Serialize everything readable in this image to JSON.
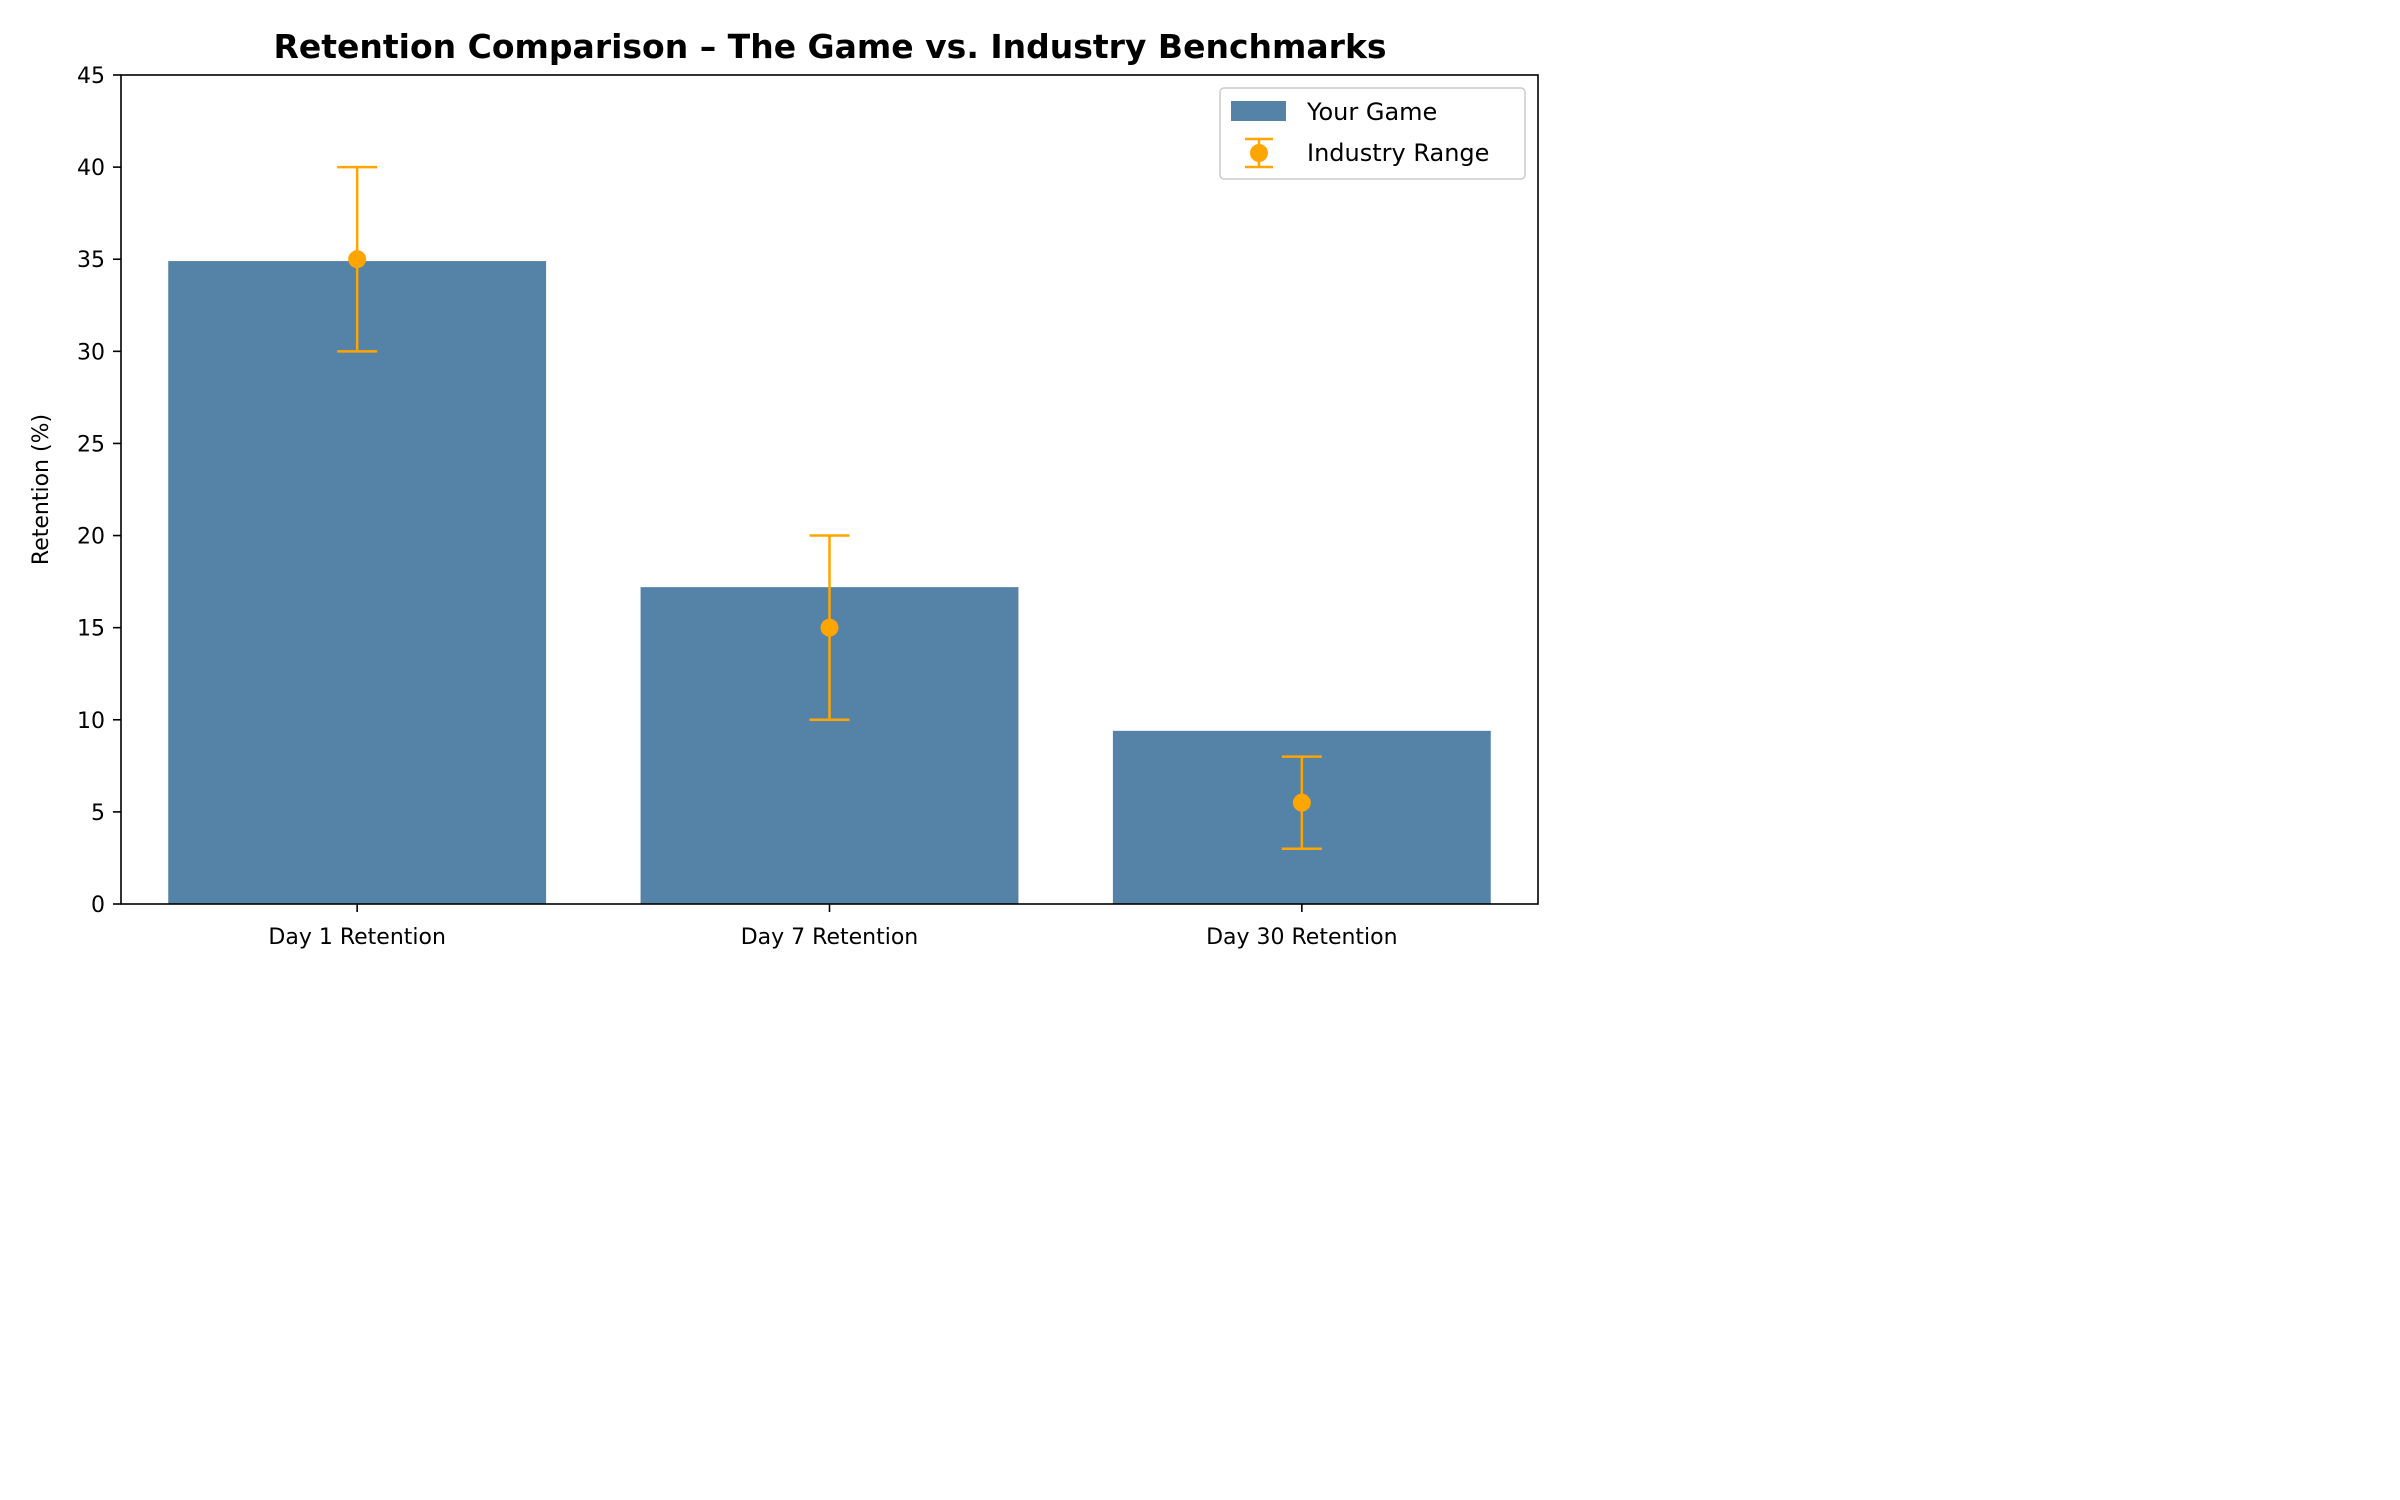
{
  "chart_data": {
    "type": "bar",
    "title": "Retention Comparison – The Game vs. Industry Benchmarks",
    "xlabel": "",
    "ylabel": "Retention (%)",
    "ylim": [
      0,
      45
    ],
    "yticks": [
      0,
      5,
      10,
      15,
      20,
      25,
      30,
      35,
      40,
      45
    ],
    "grid": false,
    "legend_position": "top-right",
    "categories": [
      "Day 1 Retention",
      "Day 7 Retention",
      "Day 30 Retention"
    ],
    "series": [
      {
        "name": "Your Game",
        "kind": "bar",
        "color": "#5582a7",
        "values": [
          34.9,
          17.2,
          9.4
        ]
      },
      {
        "name": "Industry Range",
        "kind": "errorbar",
        "color": "#ffa500",
        "values": [
          35,
          15,
          5.5
        ],
        "lower": [
          30,
          10,
          3
        ],
        "upper": [
          40,
          20,
          8
        ]
      }
    ]
  }
}
